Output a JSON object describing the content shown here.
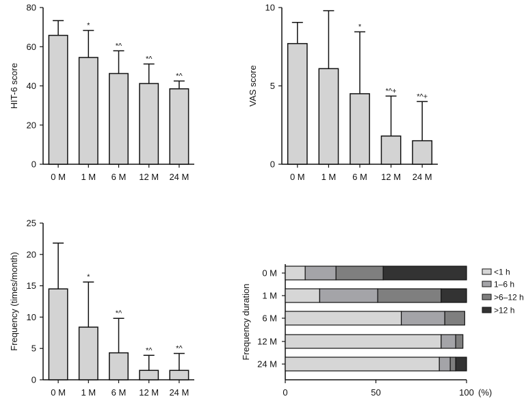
{
  "colors": {
    "bar_fill": "#d3d3d3",
    "stroke": "#111111",
    "lt1h": "#d6d6d6",
    "h1to6": "#a4a4a8",
    "h6to12": "#7f7f7f",
    "gt12h": "#333333"
  },
  "chart_data": [
    {
      "id": "hit6",
      "type": "bar",
      "title": "",
      "ylabel": "HIT-6 score",
      "xlabel": "",
      "categories": [
        "0 M",
        "1 M",
        "6 M",
        "12 M",
        "24 M"
      ],
      "values": [
        65.8,
        54.5,
        46.3,
        41.2,
        38.5
      ],
      "errors": [
        7.5,
        13.8,
        11.6,
        10.0,
        4.0
      ],
      "significance": [
        "",
        "*",
        "*^",
        "*^",
        "*^"
      ],
      "ylim": [
        0,
        80
      ],
      "yticks": [
        0,
        20,
        40,
        60,
        80
      ]
    },
    {
      "id": "vas",
      "type": "bar",
      "title": "",
      "ylabel": "VAS score",
      "xlabel": "",
      "categories": [
        "0 M",
        "1 M",
        "6 M",
        "12 M",
        "24 M"
      ],
      "values": [
        7.7,
        6.1,
        4.5,
        1.8,
        1.5
      ],
      "errors": [
        1.35,
        3.7,
        3.95,
        2.55,
        2.5
      ],
      "significance": [
        "",
        "",
        "*",
        "*^+",
        "*^+"
      ],
      "ylim": [
        0,
        10
      ],
      "yticks": [
        0,
        5,
        10
      ]
    },
    {
      "id": "frequency",
      "type": "bar",
      "title": "",
      "ylabel": "Frequency (times/month)",
      "xlabel": "",
      "categories": [
        "0 M",
        "1 M",
        "6 M",
        "12 M",
        "24 M"
      ],
      "values": [
        14.5,
        8.4,
        4.3,
        1.5,
        1.5
      ],
      "errors": [
        7.3,
        7.2,
        5.5,
        2.4,
        2.7
      ],
      "significance": [
        "",
        "*",
        "*^",
        "*^",
        "*^"
      ],
      "ylim": [
        0,
        25
      ],
      "yticks": [
        0,
        5,
        10,
        15,
        20,
        25
      ]
    },
    {
      "id": "duration",
      "type": "bar",
      "orientation": "horizontal",
      "stacked": true,
      "ylabel": "Frequency duration",
      "xlabel": "",
      "x_unit_label": "(%)",
      "categories": [
        "0 M",
        "1 M",
        "6 M",
        "12 M",
        "24 M"
      ],
      "xlim": [
        0,
        100
      ],
      "xticks": [
        0,
        50,
        100
      ],
      "legend_position": "right",
      "series": [
        {
          "name": "<1 h",
          "color_key": "lt1h",
          "values": [
            11,
            19,
            64,
            86,
            85
          ]
        },
        {
          "name": "1–6 h",
          "color_key": "h1to6",
          "values": [
            17,
            32,
            24,
            8,
            6
          ]
        },
        {
          "name": ">6–12 h",
          "color_key": "h6to12",
          "values": [
            26,
            35,
            11,
            4,
            3
          ]
        },
        {
          "name": ">12 h",
          "color_key": "gt12h",
          "values": [
            46,
            14,
            0,
            0,
            6
          ]
        }
      ]
    }
  ]
}
